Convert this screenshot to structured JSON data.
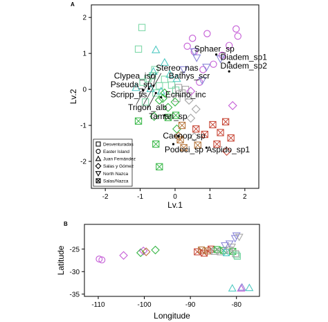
{
  "colors": {
    "desventuradas": "#7ED8A8",
    "easter": "#C45BD6",
    "juan": "#4FC9C2",
    "salasgomez": "#3BB84A",
    "northnazca": "#8A86D8",
    "salasnazca": "#C84A3A",
    "nazca_alt": "#B5743A",
    "grey": "#A8A8A8"
  },
  "chart_data": [
    {
      "panel": "A",
      "type": "scatter",
      "xlabel": "Lv.1",
      "ylabel": "Lv.2",
      "xlim": [
        -2.4,
        2.4
      ],
      "ylim": [
        -2.75,
        2.35
      ],
      "xticks": [
        -2,
        -1,
        0,
        1,
        2
      ],
      "yticks": [
        -2,
        -1,
        0,
        1,
        2
      ],
      "legend": {
        "position": "bottom-left",
        "entries": [
          {
            "label": "Desventuradas",
            "marker": "square",
            "color": "#7ED8A8"
          },
          {
            "label": "Easter Island",
            "marker": "circle",
            "color": "#C45BD6"
          },
          {
            "label": "Juan Fernández",
            "marker": "triangle",
            "color": "#4FC9C2"
          },
          {
            "label": "Salas y Gómez",
            "marker": "diamond",
            "color": "#3BB84A"
          },
          {
            "label": "North Nazca",
            "marker": "triangle-down",
            "color": "#8A86D8"
          },
          {
            "label": "Salas/Nazca",
            "marker": "xsquare",
            "color": "#C84A3A"
          }
        ]
      },
      "points": [
        {
          "x": -0.95,
          "y": 1.72,
          "m": "square",
          "c": "desventuradas"
        },
        {
          "x": -1.05,
          "y": 1.12,
          "m": "square",
          "c": "desventuradas"
        },
        {
          "x": -0.65,
          "y": 0.38,
          "m": "square",
          "c": "desventuradas"
        },
        {
          "x": -0.58,
          "y": 0.55,
          "m": "square",
          "c": "desventuradas"
        },
        {
          "x": -0.92,
          "y": 0.2,
          "m": "square",
          "c": "desventuradas"
        },
        {
          "x": -0.78,
          "y": 0.3,
          "m": "square",
          "c": "desventuradas"
        },
        {
          "x": -0.45,
          "y": 0.1,
          "m": "square",
          "c": "desventuradas"
        },
        {
          "x": -0.3,
          "y": 0.28,
          "m": "square",
          "c": "desventuradas"
        },
        {
          "x": -0.1,
          "y": 0.12,
          "m": "square",
          "c": "desventuradas"
        },
        {
          "x": 0.02,
          "y": -0.02,
          "m": "square",
          "c": "desventuradas"
        },
        {
          "x": -0.85,
          "y": -0.35,
          "m": "square",
          "c": "desventuradas"
        },
        {
          "x": -0.55,
          "y": -0.1,
          "m": "square",
          "c": "desventuradas"
        },
        {
          "x": 0.1,
          "y": 0.05,
          "m": "square",
          "c": "grey"
        },
        {
          "x": 0.2,
          "y": -0.1,
          "m": "square",
          "c": "grey"
        },
        {
          "x": 0.3,
          "y": 0.0,
          "m": "square",
          "c": "grey"
        },
        {
          "x": 0.38,
          "y": -0.18,
          "m": "square",
          "c": "grey"
        },
        {
          "x": 0.05,
          "y": -0.25,
          "m": "square",
          "c": "grey"
        },
        {
          "x": 0.5,
          "y": 1.42,
          "m": "circle",
          "c": "easter"
        },
        {
          "x": 0.92,
          "y": 1.55,
          "m": "circle",
          "c": "easter"
        },
        {
          "x": 1.75,
          "y": 1.68,
          "m": "circle",
          "c": "easter"
        },
        {
          "x": 1.8,
          "y": 1.48,
          "m": "circle",
          "c": "easter"
        },
        {
          "x": 1.55,
          "y": 1.22,
          "m": "circle",
          "c": "easter"
        },
        {
          "x": 1.35,
          "y": 0.95,
          "m": "circle",
          "c": "easter"
        },
        {
          "x": 1.1,
          "y": 0.7,
          "m": "circle",
          "c": "easter"
        },
        {
          "x": 0.8,
          "y": 0.55,
          "m": "circle",
          "c": "easter"
        },
        {
          "x": 0.55,
          "y": 1.05,
          "m": "circle",
          "c": "easter"
        },
        {
          "x": 0.35,
          "y": 1.2,
          "m": "circle",
          "c": "easter"
        },
        {
          "x": 0.7,
          "y": 0.2,
          "m": "circle",
          "c": "easter"
        },
        {
          "x": -0.55,
          "y": 1.1,
          "m": "triangle",
          "c": "juan"
        },
        {
          "x": -0.3,
          "y": 0.75,
          "m": "triangle",
          "c": "juan"
        },
        {
          "x": -0.62,
          "y": 0.5,
          "m": "triangle",
          "c": "juan"
        },
        {
          "x": -0.15,
          "y": 0.42,
          "m": "triangle",
          "c": "juan"
        },
        {
          "x": 0.05,
          "y": 0.3,
          "m": "triangle",
          "c": "juan"
        },
        {
          "x": -1.12,
          "y": 0.05,
          "m": "triangle",
          "c": "juan"
        },
        {
          "x": -0.4,
          "y": -0.05,
          "m": "triangle",
          "c": "juan"
        },
        {
          "x": -0.7,
          "y": 0.02,
          "m": "triangle",
          "c": "juan"
        },
        {
          "x": -0.45,
          "y": -0.3,
          "m": "diamond",
          "c": "salasgomez"
        },
        {
          "x": -0.3,
          "y": -0.1,
          "m": "diamond",
          "c": "salasgomez"
        },
        {
          "x": -0.2,
          "y": -0.5,
          "m": "diamond",
          "c": "salasgomez"
        },
        {
          "x": 0.0,
          "y": -0.35,
          "m": "diamond",
          "c": "salasgomez"
        },
        {
          "x": -0.6,
          "y": -0.75,
          "m": "diamond",
          "c": "salasgomez"
        },
        {
          "x": 0.05,
          "y": -1.1,
          "m": "diamond",
          "c": "salasgomez"
        },
        {
          "x": -0.35,
          "y": -0.25,
          "m": "diamond",
          "c": "salasgomez"
        },
        {
          "x": 0.45,
          "y": -0.05,
          "m": "diamond",
          "c": "easter"
        },
        {
          "x": 0.6,
          "y": -0.55,
          "m": "diamond",
          "c": "grey"
        },
        {
          "x": 0.4,
          "y": -0.3,
          "m": "diamond",
          "c": "grey"
        },
        {
          "x": 1.65,
          "y": -0.45,
          "m": "diamond",
          "c": "easter"
        },
        {
          "x": 0.9,
          "y": 0.62,
          "m": "triangle-down",
          "c": "northnazca"
        },
        {
          "x": 1.3,
          "y": 0.85,
          "m": "triangle-down",
          "c": "northnazca"
        },
        {
          "x": 0.62,
          "y": 0.88,
          "m": "triangle-down",
          "c": "northnazca"
        },
        {
          "x": 0.78,
          "y": 0.25,
          "m": "triangle-down",
          "c": "northnazca"
        },
        {
          "x": 0.55,
          "y": 1.05,
          "m": "triangle-down",
          "c": "northnazca"
        },
        {
          "x": 0.25,
          "y": 0.55,
          "m": "triangle-down",
          "c": "northnazca"
        },
        {
          "x": -0.2,
          "y": -0.78,
          "m": "xsquare",
          "c": "salasgomez"
        },
        {
          "x": -1.05,
          "y": -0.88,
          "m": "xsquare",
          "c": "salasgomez"
        },
        {
          "x": -0.55,
          "y": -1.52,
          "m": "xsquare",
          "c": "salasgomez"
        },
        {
          "x": -0.45,
          "y": -2.15,
          "m": "xsquare",
          "c": "salasgomez"
        },
        {
          "x": 0.02,
          "y": -0.72,
          "m": "xsquare",
          "c": "salasgomez"
        },
        {
          "x": 0.2,
          "y": -1.0,
          "m": "xsquare",
          "c": "nazca_alt"
        },
        {
          "x": 0.15,
          "y": -1.4,
          "m": "xsquare",
          "c": "nazca_alt"
        },
        {
          "x": 0.6,
          "y": -1.1,
          "m": "xsquare",
          "c": "salasnazca"
        },
        {
          "x": 0.85,
          "y": -1.25,
          "m": "xsquare",
          "c": "salasnazca"
        },
        {
          "x": 1.08,
          "y": -0.98,
          "m": "xsquare",
          "c": "salasnazca"
        },
        {
          "x": 1.3,
          "y": -1.2,
          "m": "xsquare",
          "c": "salasnazca"
        },
        {
          "x": 1.6,
          "y": -1.35,
          "m": "xsquare",
          "c": "salasnazca"
        },
        {
          "x": 1.2,
          "y": -1.52,
          "m": "xsquare",
          "c": "salasnazca"
        },
        {
          "x": 0.65,
          "y": -1.55,
          "m": "xsquare",
          "c": "nazca_alt"
        },
        {
          "x": 0.25,
          "y": -1.62,
          "m": "xsquare",
          "c": "nazca_alt"
        },
        {
          "x": 1.45,
          "y": -0.9,
          "m": "xsquare",
          "c": "salasnazca"
        },
        {
          "x": 1.48,
          "y": -1.72,
          "m": "diamond",
          "c": "salasnazca"
        },
        {
          "x": 0.55,
          "y": -1.32,
          "m": "diamond",
          "c": "grey"
        },
        {
          "x": 0.1,
          "y": -1.3,
          "m": "diamond",
          "c": "nazca_alt"
        },
        {
          "x": 0.45,
          "y": -0.8,
          "m": "diamond",
          "c": "grey"
        }
      ],
      "species_markers": [
        {
          "x": 1.18,
          "y": 0.97
        },
        {
          "x": 1.55,
          "y": 0.75
        },
        {
          "x": 1.55,
          "y": 0.5
        },
        {
          "x": -0.62,
          "y": 0.1
        },
        {
          "x": -0.75,
          "y": 0.02
        },
        {
          "x": -0.92,
          "y": -0.02
        },
        {
          "x": -0.55,
          "y": -0.1
        },
        {
          "x": -0.4,
          "y": -0.22
        },
        {
          "x": -0.3,
          "y": -0.72
        },
        {
          "x": 0.1,
          "y": -1.3
        },
        {
          "x": -0.05,
          "y": -1.52
        },
        {
          "x": 0.9,
          "y": -1.62
        }
      ],
      "species_labels": [
        {
          "text": "Sphaer_sp",
          "x": 0.55,
          "y": 1.05
        },
        {
          "text": "Diadem_sp1",
          "x": 1.3,
          "y": 0.82
        },
        {
          "text": "Diadem_sp2",
          "x": 1.3,
          "y": 0.58
        },
        {
          "text": "Stereo_nas",
          "x": -0.55,
          "y": 0.52
        },
        {
          "text": "Clypea_iso",
          "x": -1.75,
          "y": 0.3
        },
        {
          "text": "Bathys_scr",
          "x": -0.18,
          "y": 0.3
        },
        {
          "text": "Pseuda_sp",
          "x": -1.85,
          "y": 0.06
        },
        {
          "text": "Scripp_fis",
          "x": -1.85,
          "y": -0.22
        },
        {
          "text": "Echino_inc",
          "x": -0.28,
          "y": -0.22
        },
        {
          "text": "Trigon_alb",
          "x": -1.35,
          "y": -0.58
        },
        {
          "text": "Tamari_sp",
          "x": -0.75,
          "y": -0.83
        },
        {
          "text": "Caenop_sp",
          "x": -0.35,
          "y": -1.36
        },
        {
          "text": "Podoci_sp",
          "x": -0.3,
          "y": -1.75
        },
        {
          "text": "Aspido_sp1",
          "x": 0.9,
          "y": -1.75
        }
      ]
    },
    {
      "panel": "B",
      "type": "scatter",
      "xlabel": "Longitude",
      "ylabel": "Latitude",
      "xlim": [
        -113,
        -75
      ],
      "ylim": [
        -35.5,
        -19.5
      ],
      "xticks": [
        -110,
        -100,
        -90,
        -80
      ],
      "xticklabels": [
        "-110",
        "-100",
        "-90",
        "-80"
      ],
      "yticks": [
        -35,
        -30,
        -25
      ],
      "yticklabels": [
        "-35",
        "-30",
        "-25"
      ],
      "points": [
        {
          "x": -109.8,
          "y": -27.2,
          "m": "circle",
          "c": "easter"
        },
        {
          "x": -109.2,
          "y": -27.4,
          "m": "circle",
          "c": "easter"
        },
        {
          "x": -104.5,
          "y": -26.4,
          "m": "diamond",
          "c": "easter"
        },
        {
          "x": -100.8,
          "y": -25.8,
          "m": "diamond",
          "c": "salasgomez"
        },
        {
          "x": -100.2,
          "y": -25.4,
          "m": "diamond",
          "c": "easter"
        },
        {
          "x": -99.6,
          "y": -25.6,
          "m": "diamond",
          "c": "nazca_alt"
        },
        {
          "x": -97.6,
          "y": -25.2,
          "m": "diamond",
          "c": "salasgomez"
        },
        {
          "x": -88.5,
          "y": -25.6,
          "m": "xsquare",
          "c": "salasnazca"
        },
        {
          "x": -87.6,
          "y": -25.2,
          "m": "xsquare",
          "c": "nazca_alt"
        },
        {
          "x": -87.0,
          "y": -25.9,
          "m": "xsquare",
          "c": "salasnazca"
        },
        {
          "x": -86.2,
          "y": -25.4,
          "m": "xsquare",
          "c": "nazca_alt"
        },
        {
          "x": -85.5,
          "y": -25.0,
          "m": "xsquare",
          "c": "salasnazca"
        },
        {
          "x": -84.8,
          "y": -25.5,
          "m": "xsquare",
          "c": "grey"
        },
        {
          "x": -84.2,
          "y": -25.1,
          "m": "xsquare",
          "c": "salasgomez"
        },
        {
          "x": -83.5,
          "y": -25.6,
          "m": "xsquare",
          "c": "grey"
        },
        {
          "x": -82.8,
          "y": -25.3,
          "m": "xsquare",
          "c": "salasgomez"
        },
        {
          "x": -82.2,
          "y": -25.8,
          "m": "xsquare",
          "c": "juan"
        },
        {
          "x": -81.5,
          "y": -25.2,
          "m": "xsquare",
          "c": "grey"
        },
        {
          "x": -80.8,
          "y": -25.5,
          "m": "xsquare",
          "c": "salasgomez"
        },
        {
          "x": -82.5,
          "y": -24.2,
          "m": "triangle-down",
          "c": "northnazca"
        },
        {
          "x": -81.5,
          "y": -23.8,
          "m": "triangle-down",
          "c": "northnazca"
        },
        {
          "x": -81.0,
          "y": -24.5,
          "m": "triangle-down",
          "c": "grey"
        },
        {
          "x": -80.3,
          "y": -22.6,
          "m": "triangle-down",
          "c": "northnazca"
        },
        {
          "x": -80.0,
          "y": -22.0,
          "m": "triangle-down",
          "c": "northnazca"
        },
        {
          "x": -79.4,
          "y": -22.3,
          "m": "triangle-down",
          "c": "grey"
        },
        {
          "x": -80.0,
          "y": -26.3,
          "m": "square",
          "c": "desventuradas"
        },
        {
          "x": -79.8,
          "y": -26.6,
          "m": "square",
          "c": "desventuradas"
        },
        {
          "x": -80.2,
          "y": -26.0,
          "m": "square",
          "c": "grey"
        },
        {
          "x": -80.9,
          "y": -33.7,
          "m": "triangle",
          "c": "juan"
        },
        {
          "x": -79.0,
          "y": -33.7,
          "m": "triangle",
          "c": "easter"
        },
        {
          "x": -78.8,
          "y": -33.5,
          "m": "triangle",
          "c": "northnazca"
        },
        {
          "x": -77.2,
          "y": -33.6,
          "m": "triangle",
          "c": "juan"
        }
      ]
    }
  ]
}
